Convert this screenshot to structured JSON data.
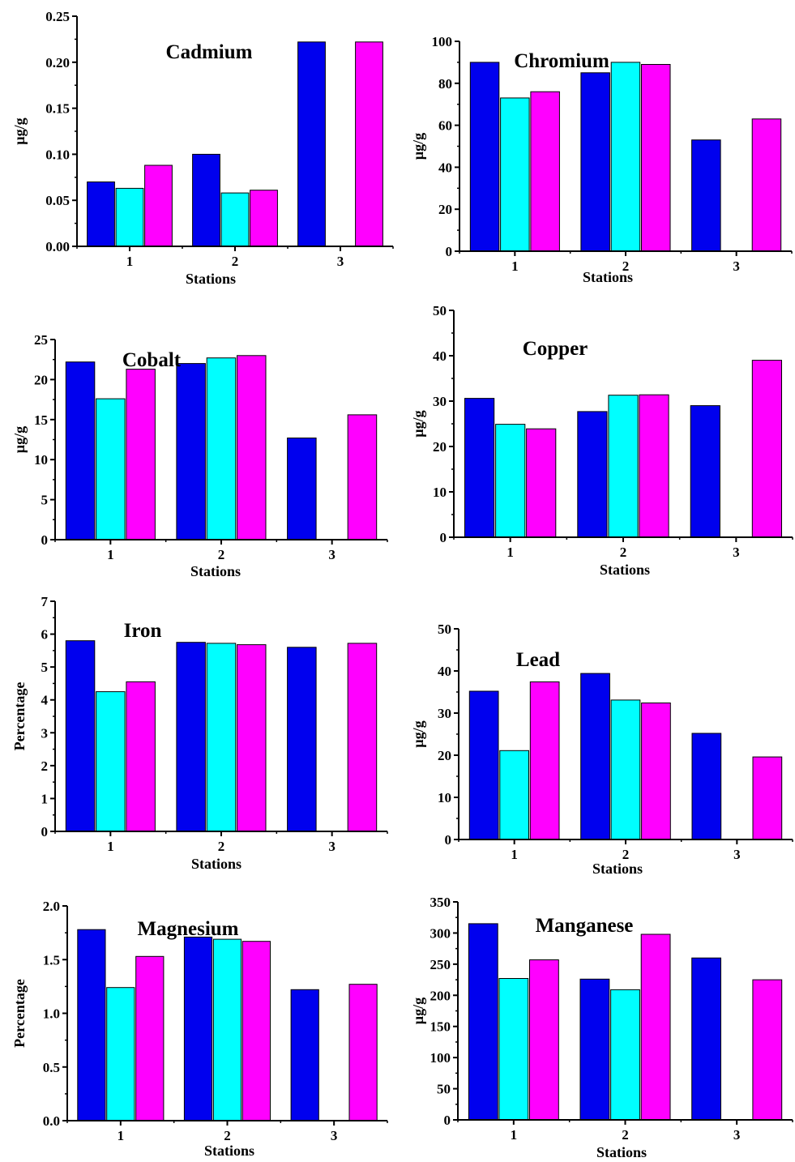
{
  "colors": [
    "#0000ee",
    "#00ffff",
    "#ff00ff"
  ],
  "chart_data": [
    {
      "type": "bar",
      "title": "Cadmium",
      "ylabel": "µg/g",
      "xlabel": "Stations",
      "categories": [
        "1",
        "2",
        "3"
      ],
      "ylim": [
        0,
        0.25
      ],
      "yticks": [
        "0.00",
        "0.05",
        "0.10",
        "0.15",
        "0.20",
        "0.25"
      ],
      "series": [
        {
          "values": [
            0.07,
            0.1,
            0.222
          ]
        },
        {
          "values": [
            0.063,
            0.058,
            null
          ]
        },
        {
          "values": [
            0.088,
            0.061,
            0.222
          ]
        }
      ]
    },
    {
      "type": "bar",
      "title": "Chromium",
      "ylabel": "µg/g",
      "xlabel": "Stations",
      "categories": [
        "1",
        "2",
        "3"
      ],
      "ylim": [
        0,
        100
      ],
      "yticks": [
        "0",
        "20",
        "40",
        "60",
        "80",
        "100"
      ],
      "series": [
        {
          "values": [
            90,
            85,
            53
          ]
        },
        {
          "values": [
            73,
            90,
            null
          ]
        },
        {
          "values": [
            76,
            89,
            63
          ]
        }
      ]
    },
    {
      "type": "bar",
      "title": "Cobalt",
      "ylabel": "µg/g",
      "xlabel": "Stations",
      "categories": [
        "1",
        "2",
        "3"
      ],
      "ylim": [
        0,
        25
      ],
      "yticks": [
        "0",
        "5",
        "10",
        "15",
        "20",
        "25"
      ],
      "series": [
        {
          "values": [
            22.2,
            22,
            12.7
          ]
        },
        {
          "values": [
            17.6,
            22.7,
            null
          ]
        },
        {
          "values": [
            21.3,
            23,
            15.6
          ]
        }
      ]
    },
    {
      "type": "bar",
      "title": "Copper",
      "ylabel": "µg/g",
      "xlabel": "Stations",
      "categories": [
        "1",
        "2",
        "3"
      ],
      "ylim": [
        0,
        50
      ],
      "yticks": [
        "0",
        "10",
        "20",
        "30",
        "40",
        "50"
      ],
      "series": [
        {
          "values": [
            30.6,
            27.7,
            29
          ]
        },
        {
          "values": [
            24.9,
            31.3,
            null
          ]
        },
        {
          "values": [
            23.9,
            31.4,
            39
          ]
        }
      ]
    },
    {
      "type": "bar",
      "title": "Iron",
      "ylabel": "Percentage",
      "xlabel": "Stations",
      "categories": [
        "1",
        "2",
        "3"
      ],
      "ylim": [
        0,
        7
      ],
      "yticks": [
        "0",
        "1",
        "2",
        "3",
        "4",
        "5",
        "6",
        "7"
      ],
      "series": [
        {
          "values": [
            5.8,
            5.75,
            5.6
          ]
        },
        {
          "values": [
            4.25,
            5.72,
            null
          ]
        },
        {
          "values": [
            4.55,
            5.68,
            5.72
          ]
        }
      ]
    },
    {
      "type": "bar",
      "title": "Lead",
      "ylabel": "µg/g",
      "xlabel": "Stations",
      "categories": [
        "1",
        "2",
        "3"
      ],
      "ylim": [
        0,
        50
      ],
      "yticks": [
        "0",
        "10",
        "20",
        "30",
        "40",
        "50"
      ],
      "series": [
        {
          "values": [
            35.2,
            39.4,
            25.2
          ]
        },
        {
          "values": [
            21.1,
            33.1,
            null
          ]
        },
        {
          "values": [
            37.4,
            32.4,
            19.6
          ]
        }
      ]
    },
    {
      "type": "bar",
      "title": "Magnesium",
      "ylabel": "Percentage",
      "xlabel": "Stations",
      "categories": [
        "1",
        "2",
        "3"
      ],
      "ylim": [
        0,
        2.0
      ],
      "yticks": [
        "0.0",
        "0.5",
        "1.0",
        "1.5",
        "2.0"
      ],
      "series": [
        {
          "values": [
            1.78,
            1.71,
            1.22
          ]
        },
        {
          "values": [
            1.24,
            1.69,
            null
          ]
        },
        {
          "values": [
            1.53,
            1.67,
            1.27
          ]
        }
      ]
    },
    {
      "type": "bar",
      "title": "Manganese",
      "ylabel": "µg/g",
      "xlabel": "Stations",
      "categories": [
        "1",
        "2",
        "3"
      ],
      "ylim": [
        0,
        350
      ],
      "yticks": [
        "0",
        "50",
        "100",
        "150",
        "200",
        "250",
        "300",
        "350"
      ],
      "series": [
        {
          "values": [
            315,
            226,
            260
          ]
        },
        {
          "values": [
            227,
            209,
            null
          ]
        },
        {
          "values": [
            257,
            298,
            225
          ]
        }
      ]
    }
  ]
}
